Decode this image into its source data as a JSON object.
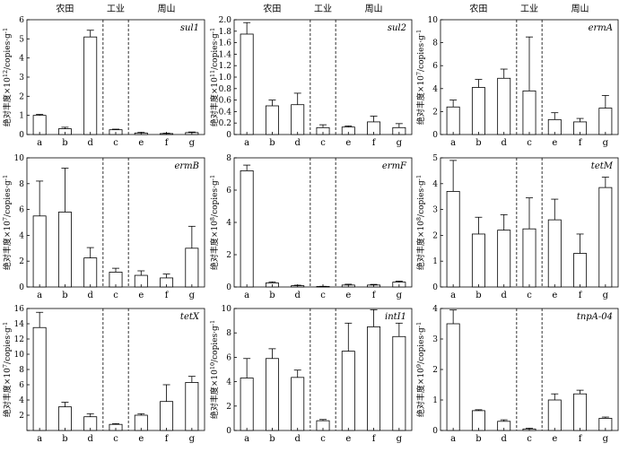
{
  "chart_data": [
    {
      "type": "bar",
      "title": "sul1",
      "ylabel": "绝对丰度×10¹²/copies·g⁻¹",
      "ylabel_base": "绝对丰度×10",
      "ylabel_exp": "12",
      "ylabel_unit": "/copies·g",
      "ylabel_unit_exp": "-1",
      "group_labels": [
        "农田",
        "工业",
        "周山"
      ],
      "categories": [
        "a",
        "b",
        "d",
        "c",
        "e",
        "f",
        "g"
      ],
      "values": [
        1.0,
        0.3,
        5.1,
        0.25,
        0.08,
        0.05,
        0.1
      ],
      "errors": [
        0.05,
        0.08,
        0.35,
        0.03,
        0.03,
        0.02,
        0.03
      ],
      "ylim": [
        0,
        6
      ],
      "yticks": [
        0,
        1,
        2,
        3,
        4,
        5,
        6
      ],
      "ytick_labels": [
        "0",
        "1",
        "2",
        "3",
        "4",
        "5",
        "6"
      ]
    },
    {
      "type": "bar",
      "title": "sul2",
      "ylabel": "绝对丰度×10¹¹/copies·g⁻¹",
      "ylabel_base": "绝对丰度×10",
      "ylabel_exp": "11",
      "ylabel_unit": "/copies·g",
      "ylabel_unit_exp": "-1",
      "group_labels": [
        "农田",
        "工业",
        "周山"
      ],
      "categories": [
        "a",
        "b",
        "d",
        "c",
        "e",
        "f",
        "g"
      ],
      "values": [
        1.75,
        0.5,
        0.52,
        0.12,
        0.13,
        0.22,
        0.12
      ],
      "errors": [
        0.2,
        0.1,
        0.2,
        0.05,
        0.02,
        0.1,
        0.07
      ],
      "ylim": [
        0,
        2.0
      ],
      "yticks": [
        0,
        0.2,
        0.4,
        0.6,
        0.8,
        1.0,
        1.2,
        1.4,
        1.6,
        1.8,
        2.0
      ],
      "ytick_labels": [
        "0",
        "0.2",
        "0.4",
        "0.6",
        "0.8",
        "1.0",
        "1.2",
        "1.4",
        "1.6",
        "1.8",
        "2.0"
      ]
    },
    {
      "type": "bar",
      "title": "ermA",
      "ylabel": "绝对丰度×10⁷/copies·g⁻¹",
      "ylabel_base": "绝对丰度×10",
      "ylabel_exp": "7",
      "ylabel_unit": "/copies·g",
      "ylabel_unit_exp": "-1",
      "group_labels": [
        "农田",
        "工业",
        "周山"
      ],
      "categories": [
        "a",
        "b",
        "d",
        "c",
        "e",
        "f",
        "g"
      ],
      "values": [
        2.4,
        4.1,
        4.9,
        3.8,
        1.3,
        1.1,
        2.3
      ],
      "errors": [
        0.6,
        0.7,
        0.8,
        4.7,
        0.6,
        0.3,
        1.1
      ],
      "ylim": [
        0,
        10
      ],
      "yticks": [
        0,
        2,
        4,
        6,
        8,
        10
      ],
      "ytick_labels": [
        "0",
        "2",
        "4",
        "6",
        "8",
        "10"
      ]
    },
    {
      "type": "bar",
      "title": "ermB",
      "ylabel": "绝对丰度×10⁷/copies·g⁻¹",
      "ylabel_base": "绝对丰度×10",
      "ylabel_exp": "7",
      "ylabel_unit": "/copies·g",
      "ylabel_unit_exp": "-1",
      "group_labels": [
        "",
        "",
        ""
      ],
      "categories": [
        "a",
        "b",
        "d",
        "c",
        "e",
        "f",
        "g"
      ],
      "values": [
        5.5,
        5.8,
        2.25,
        1.15,
        0.9,
        0.7,
        3.0
      ],
      "errors": [
        2.7,
        3.4,
        0.8,
        0.3,
        0.35,
        0.3,
        1.7
      ],
      "ylim": [
        0,
        10
      ],
      "yticks": [
        0,
        2,
        4,
        6,
        8,
        10
      ],
      "ytick_labels": [
        "0",
        "2",
        "4",
        "6",
        "8",
        "10"
      ]
    },
    {
      "type": "bar",
      "title": "ermF",
      "ylabel": "绝对丰度×10⁸/copies·g⁻¹",
      "ylabel_base": "绝对丰度×10",
      "ylabel_exp": "8",
      "ylabel_unit": "/copies·g",
      "ylabel_unit_exp": "-1",
      "group_labels": [
        "",
        "",
        ""
      ],
      "categories": [
        "a",
        "b",
        "d",
        "c",
        "e",
        "f",
        "g"
      ],
      "values": [
        7.2,
        0.25,
        0.08,
        0.03,
        0.12,
        0.12,
        0.3
      ],
      "errors": [
        0.35,
        0.07,
        0.03,
        0.01,
        0.05,
        0.04,
        0.06
      ],
      "ylim": [
        0,
        8
      ],
      "yticks": [
        0,
        2,
        4,
        6,
        8
      ],
      "ytick_labels": [
        "0",
        "2",
        "4",
        "6",
        "8"
      ]
    },
    {
      "type": "bar",
      "title": "tetM",
      "ylabel": "绝对丰度×10⁸/copies·g⁻¹",
      "ylabel_base": "绝对丰度×10",
      "ylabel_exp": "8",
      "ylabel_unit": "/copies·g",
      "ylabel_unit_exp": "-1",
      "group_labels": [
        "",
        "",
        ""
      ],
      "categories": [
        "a",
        "b",
        "d",
        "c",
        "e",
        "f",
        "g"
      ],
      "values": [
        3.7,
        2.05,
        2.2,
        2.25,
        2.6,
        1.3,
        3.85
      ],
      "errors": [
        1.2,
        0.65,
        0.6,
        1.2,
        0.8,
        0.75,
        0.4
      ],
      "ylim": [
        0,
        5
      ],
      "yticks": [
        0,
        1,
        2,
        3,
        4,
        5
      ],
      "ytick_labels": [
        "0",
        "1",
        "2",
        "3",
        "4",
        "5"
      ]
    },
    {
      "type": "bar",
      "title": "tetX",
      "ylabel": "绝对丰度×10⁷/copies·g⁻¹",
      "ylabel_base": "绝对丰度×10",
      "ylabel_exp": "7",
      "ylabel_unit": "/copies·g",
      "ylabel_unit_exp": "-1",
      "group_labels": [
        "",
        "",
        ""
      ],
      "categories": [
        "a",
        "b",
        "d",
        "c",
        "e",
        "f",
        "g"
      ],
      "values": [
        13.5,
        3.1,
        1.8,
        0.8,
        2.0,
        3.8,
        6.3
      ],
      "errors": [
        2.0,
        0.6,
        0.4,
        0.1,
        0.2,
        2.2,
        0.8
      ],
      "ylim": [
        0,
        16
      ],
      "yticks": [
        0,
        2,
        4,
        6,
        8,
        10,
        12,
        14,
        16
      ],
      "ytick_labels": [
        "",
        "2",
        "4",
        "6",
        "8",
        "10",
        "12",
        "14",
        "16"
      ]
    },
    {
      "type": "bar",
      "title": "intI1",
      "ylabel": "绝对丰度×10¹⁰/copies·g⁻¹",
      "ylabel_base": "绝对丰度×10",
      "ylabel_exp": "10",
      "ylabel_unit": "/copies·g",
      "ylabel_unit_exp": "-1",
      "group_labels": [
        "",
        "",
        ""
      ],
      "categories": [
        "a",
        "b",
        "d",
        "c",
        "e",
        "f",
        "g"
      ],
      "values": [
        4.3,
        5.9,
        4.35,
        0.8,
        6.5,
        8.5,
        7.7
      ],
      "errors": [
        1.6,
        0.8,
        0.6,
        0.1,
        2.3,
        1.4,
        1.1
      ],
      "ylim": [
        0,
        10
      ],
      "yticks": [
        0,
        2,
        4,
        6,
        8,
        10
      ],
      "ytick_labels": [
        "0",
        "2",
        "4",
        "6",
        "8",
        "10"
      ]
    },
    {
      "type": "bar",
      "title": "tnpA-04",
      "ylabel": "绝对丰度×10⁹/copies·g⁻¹",
      "ylabel_base": "绝对丰度×10",
      "ylabel_exp": "9",
      "ylabel_unit": "/copies·g",
      "ylabel_unit_exp": "-1",
      "group_labels": [
        "",
        "",
        ""
      ],
      "categories": [
        "a",
        "b",
        "d",
        "c",
        "e",
        "f",
        "g"
      ],
      "values": [
        3.5,
        0.65,
        0.3,
        0.05,
        1.0,
        1.2,
        0.4
      ],
      "errors": [
        0.45,
        0.03,
        0.05,
        0.02,
        0.2,
        0.12,
        0.04
      ],
      "ylim": [
        0,
        4
      ],
      "yticks": [
        0,
        1,
        2,
        3,
        4
      ],
      "ytick_labels": [
        "0",
        "1",
        "2",
        "3",
        "4"
      ]
    }
  ]
}
